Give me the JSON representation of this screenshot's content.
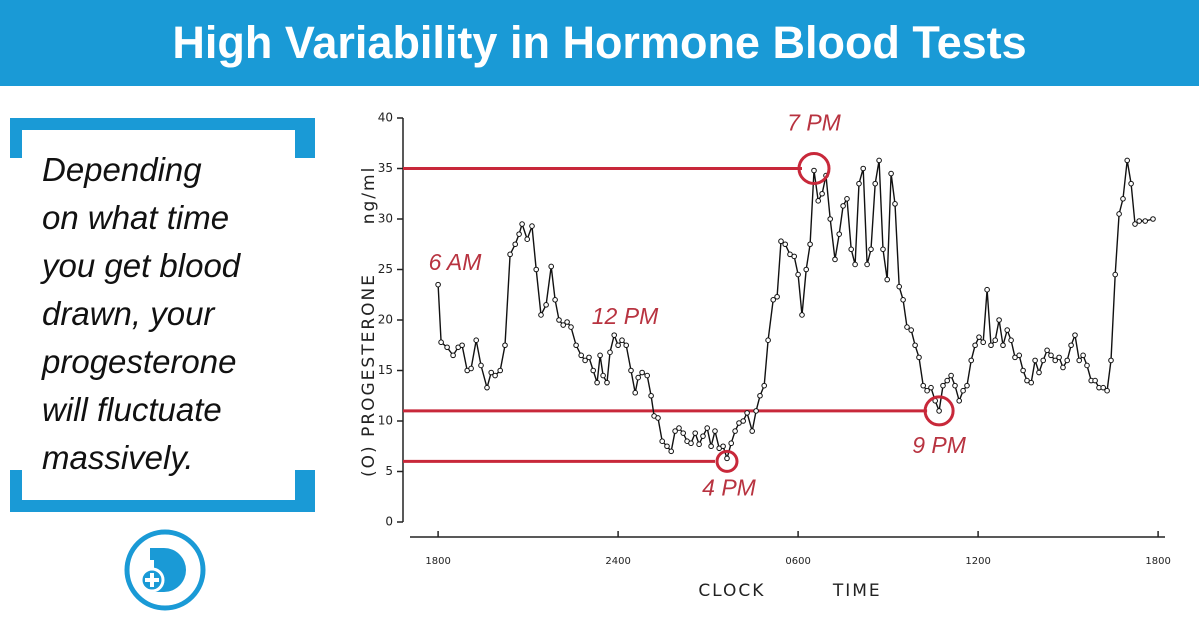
{
  "header": {
    "title": "High Variability in Hormone Blood Tests"
  },
  "side_text": [
    "Depending",
    "on what time",
    "you get blood",
    "drawn, your",
    "progesterone",
    "will fluctuate",
    "massively."
  ],
  "chart_data": {
    "type": "line",
    "x_label": "CLOCK TIME",
    "y_label": "(O) PROGESTERONE",
    "y_unit_label": "ng/ml",
    "xlim": [
      -1.17,
      24.23
    ],
    "xticks": [
      {
        "value": 0,
        "label": "1800"
      },
      {
        "value": 6,
        "label": "2400"
      },
      {
        "value": 12,
        "label": "0600"
      },
      {
        "value": 18,
        "label": "1200"
      },
      {
        "value": 24,
        "label": "1800"
      }
    ],
    "ylim": [
      0,
      40
    ],
    "yticks": [
      0,
      5,
      10,
      15,
      20,
      25,
      30,
      35,
      40
    ],
    "annotations": [
      "6 AM",
      "12 PM"
    ],
    "highlights": [
      {
        "label": "7 PM",
        "x": 12.53,
        "y": 35
      },
      {
        "label": "4 PM",
        "x": 9.63,
        "y": 6
      },
      {
        "label": "9 PM",
        "x": 16.7,
        "y": 11
      }
    ],
    "highlight_color": "#c8283a",
    "series": [
      {
        "color": "#111111",
        "x": [
          0,
          0.1,
          0.3,
          0.5,
          0.67,
          0.8,
          0.97,
          1.1,
          1.27,
          1.43,
          1.63,
          1.77,
          1.9,
          2.07,
          2.23,
          2.4,
          2.57,
          2.7,
          2.8,
          2.97,
          3.13,
          3.27,
          3.43,
          3.6,
          3.77,
          3.9,
          4.03,
          4.17,
          4.3,
          4.43,
          4.6,
          4.77,
          4.9,
          5.03,
          5.17,
          5.3,
          5.4,
          5.5,
          5.63,
          5.73,
          5.87,
          6.0,
          6.13,
          6.27,
          6.43,
          6.57,
          6.67,
          6.8,
          6.97,
          7.1,
          7.2,
          7.33,
          7.47,
          7.63,
          7.77,
          7.9,
          8.03,
          8.17,
          8.3,
          8.43,
          8.57,
          8.7,
          8.83,
          8.97,
          9.1,
          9.23,
          9.37,
          9.5,
          9.63,
          9.77,
          9.9,
          10.03,
          10.17,
          10.3,
          10.47,
          10.6,
          10.73,
          10.87,
          11.0,
          11.17,
          11.3,
          11.43,
          11.57,
          11.73,
          11.87,
          12.0,
          12.13,
          12.27,
          12.4,
          12.53,
          12.67,
          12.8,
          12.93,
          13.07,
          13.23,
          13.37,
          13.5,
          13.63,
          13.77,
          13.9,
          14.03,
          14.17,
          14.3,
          14.43,
          14.57,
          14.7,
          14.83,
          14.97,
          15.1,
          15.23,
          15.37,
          15.5,
          15.63,
          15.77,
          15.9,
          16.03,
          16.17,
          16.3,
          16.43,
          16.57,
          16.7,
          16.83,
          16.97,
          17.1,
          17.23,
          17.37,
          17.5,
          17.63,
          17.77,
          17.9,
          18.03,
          18.17,
          18.3,
          18.43,
          18.57,
          18.7,
          18.83,
          18.97,
          19.1,
          19.23,
          19.37,
          19.5,
          19.63,
          19.77,
          19.9,
          20.03,
          20.17,
          20.3,
          20.43,
          20.57,
          20.7,
          20.83,
          20.97,
          21.1,
          21.23,
          21.37,
          21.5,
          21.63,
          21.77,
          21.9,
          22.03,
          22.17,
          22.3,
          22.43,
          22.57,
          22.7,
          22.83,
          22.97,
          23.1,
          23.23,
          23.37,
          23.57,
          23.83
        ],
        "values": [
          23.5,
          17.8,
          17.3,
          16.5,
          17.3,
          17.5,
          15.0,
          15.2,
          18.0,
          15.5,
          13.3,
          14.8,
          14.5,
          15.0,
          17.5,
          26.5,
          27.5,
          28.5,
          29.5,
          28.0,
          29.3,
          25.0,
          20.5,
          21.5,
          25.3,
          22.0,
          20.0,
          19.5,
          19.8,
          19.3,
          17.5,
          16.5,
          16.0,
          16.3,
          15.0,
          13.8,
          16.5,
          14.5,
          13.8,
          16.8,
          18.5,
          17.5,
          18.0,
          17.5,
          15.0,
          12.8,
          14.3,
          14.8,
          14.5,
          12.5,
          10.5,
          10.3,
          8.0,
          7.5,
          7.0,
          9.0,
          9.3,
          8.8,
          8.0,
          7.8,
          8.8,
          7.7,
          8.5,
          9.3,
          7.5,
          9.0,
          7.3,
          7.5,
          6.3,
          7.8,
          9.0,
          9.8,
          10.0,
          10.8,
          9.0,
          11.0,
          12.5,
          13.5,
          18.0,
          22.0,
          22.3,
          27.8,
          27.5,
          26.5,
          26.3,
          24.5,
          20.5,
          25.0,
          27.5,
          34.8,
          31.8,
          32.5,
          34.3,
          30.0,
          26.0,
          28.5,
          31.3,
          32.0,
          27.0,
          25.5,
          33.5,
          35.0,
          25.5,
          27.0,
          33.5,
          35.8,
          27.0,
          24.0,
          34.5,
          31.5,
          23.3,
          22.0,
          19.3,
          19.0,
          17.5,
          16.3,
          13.5,
          13.0,
          13.3,
          12.0,
          11.0,
          13.5,
          14.0,
          14.5,
          13.5,
          12.0,
          13.0,
          13.5,
          16.0,
          17.5,
          18.3,
          17.8,
          23.0,
          17.5,
          18.0,
          20.0,
          17.5,
          19.0,
          18.0,
          16.3,
          16.5,
          15.0,
          14.0,
          13.8,
          16.0,
          14.8,
          16.0,
          17.0,
          16.5,
          16.0,
          16.3,
          15.3,
          16.0,
          17.5,
          18.5,
          16.0,
          16.5,
          15.5,
          14.0,
          14.0,
          13.3,
          13.3,
          13.0,
          16.0,
          24.5,
          30.5,
          32.0,
          35.8,
          33.5,
          29.5,
          29.8,
          29.8,
          30.0
        ]
      }
    ]
  }
}
